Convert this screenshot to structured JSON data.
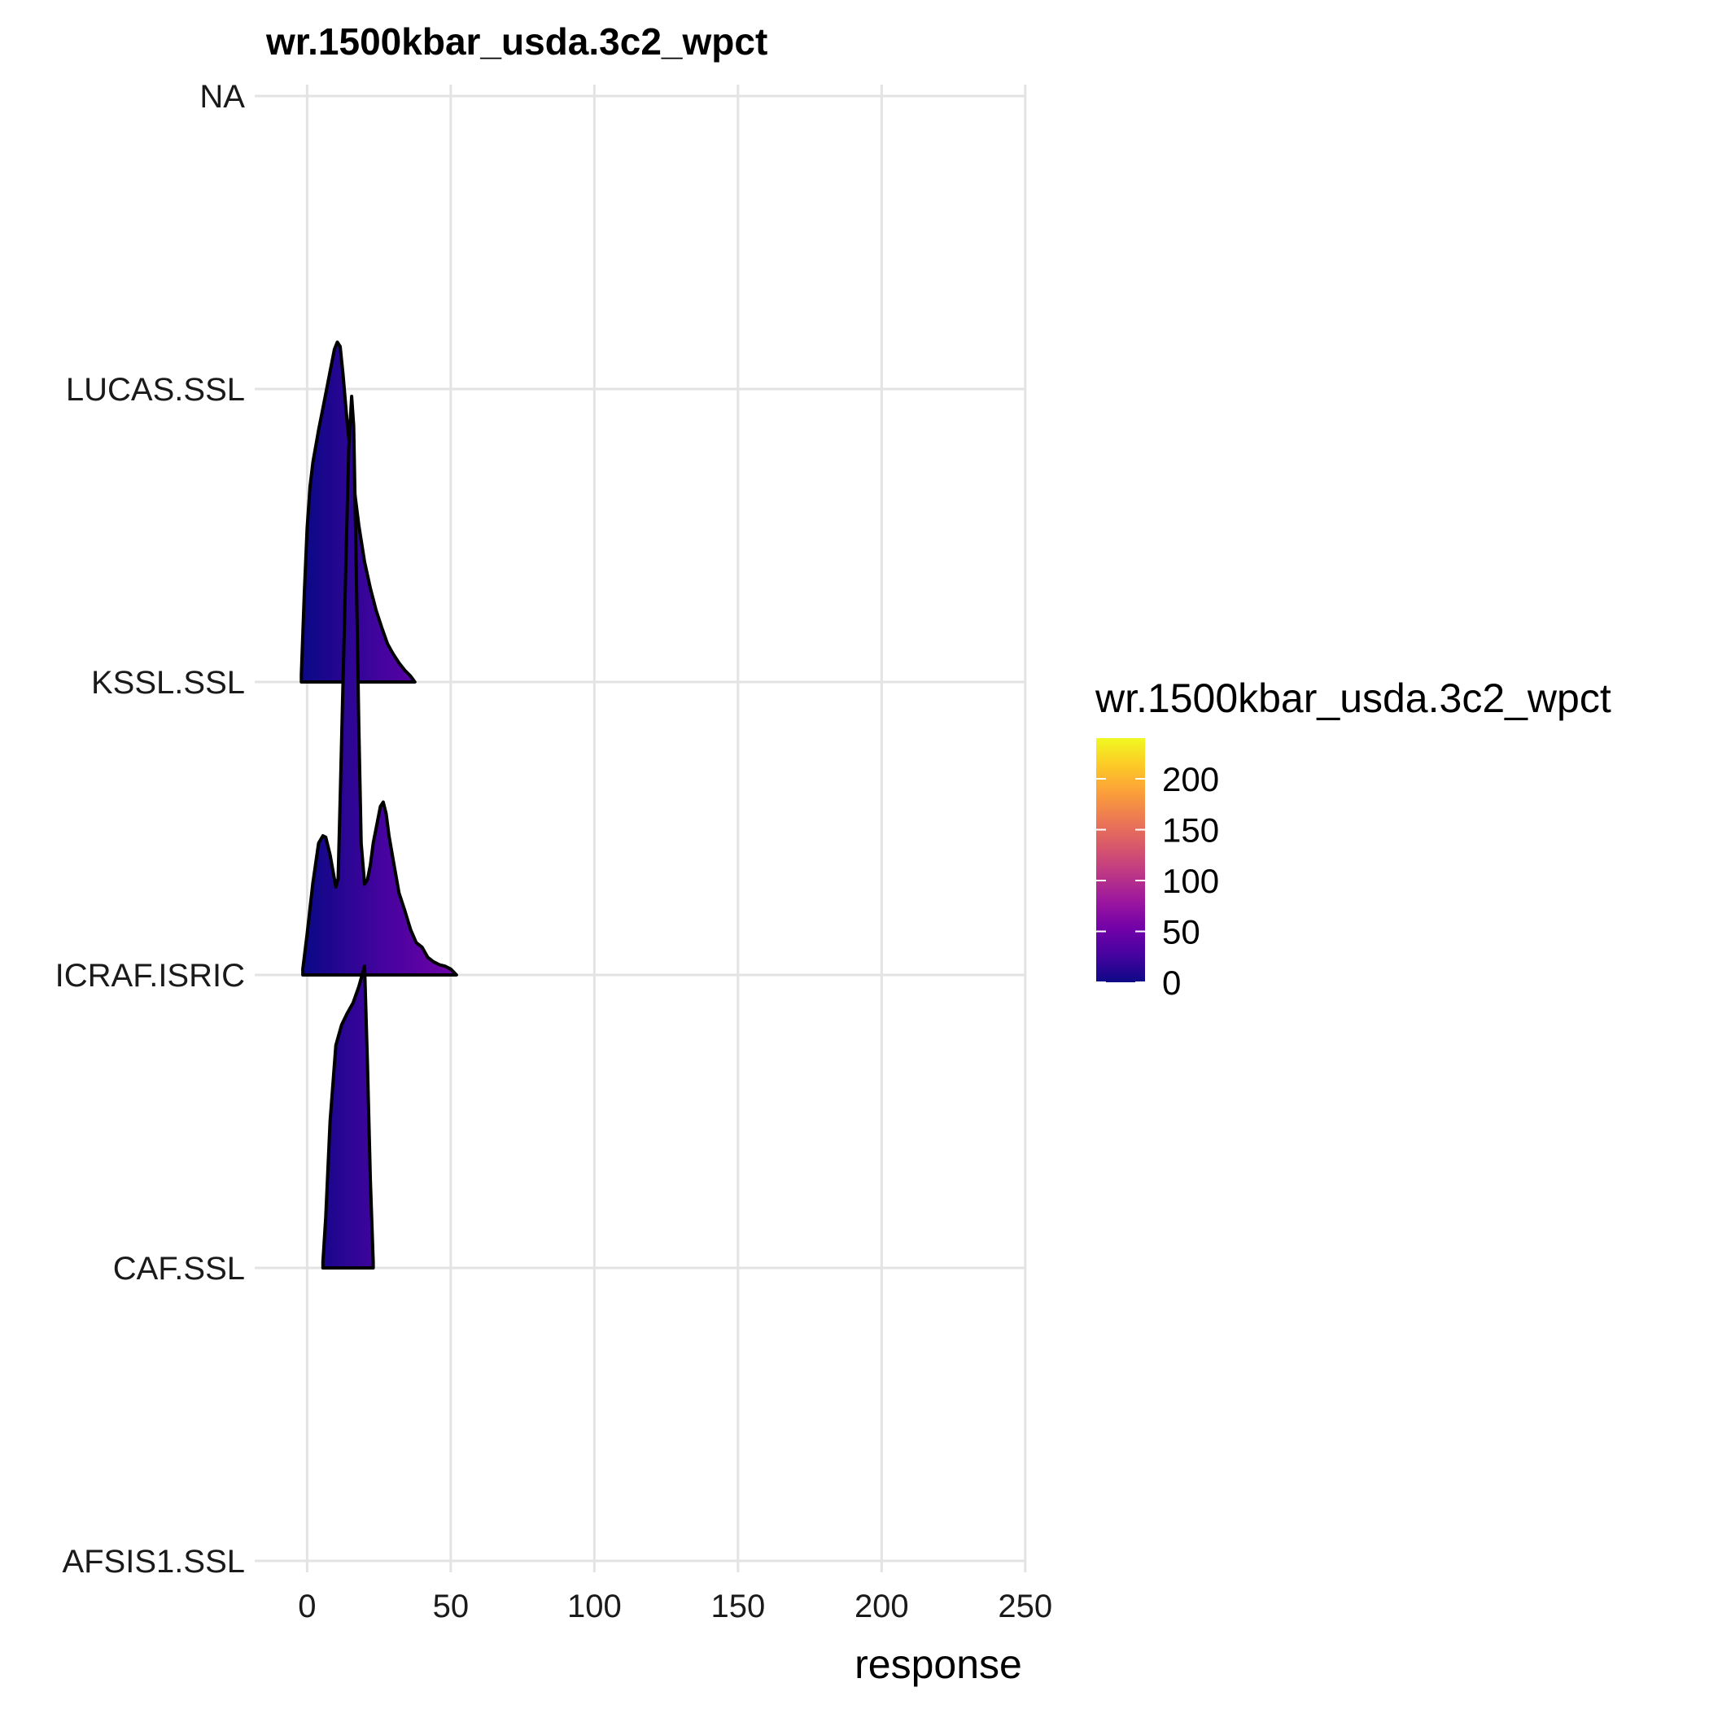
{
  "chart_data": {
    "type": "ridgeline",
    "title": "wr.1500kbar_usda.3c2_wpct",
    "xlabel": "response",
    "ylabel": "",
    "xlim": [
      -18,
      252
    ],
    "x_ticks": [
      0,
      50,
      100,
      150,
      200,
      250
    ],
    "categories": [
      "AFSIS1.SSL",
      "CAF.SSL",
      "ICRAF.ISRIC",
      "KSSL.SSL",
      "LUCAS.SSL",
      "NA"
    ],
    "grid": true,
    "legend": {
      "title": "wr.1500kbar_usda.3c2_wpct",
      "position": "right",
      "type": "colorbar",
      "palette": "plasma",
      "range": [
        0,
        240
      ],
      "ticks": [
        0,
        50,
        100,
        150,
        200
      ],
      "colors": [
        "#0d0887",
        "#46039f",
        "#7201a8",
        "#9c179e",
        "#bd3786",
        "#d8576b",
        "#ed7953",
        "#fb9f3a",
        "#fdca26",
        "#f0f921"
      ]
    },
    "series": [
      {
        "category": "CAF.SSL",
        "points": [
          [
            5.5,
            0.04
          ],
          [
            6.5,
            0.35
          ],
          [
            8,
            1.0
          ],
          [
            10,
            1.52
          ],
          [
            12,
            1.66
          ],
          [
            14,
            1.74
          ],
          [
            16,
            1.81
          ],
          [
            18,
            1.92
          ],
          [
            20,
            2.06
          ],
          [
            21,
            1.4
          ],
          [
            22,
            0.6
          ],
          [
            23,
            0.04
          ]
        ]
      },
      {
        "category": "ICRAF.ISRIC",
        "points": [
          [
            -1.5,
            0.04
          ],
          [
            0,
            0.28
          ],
          [
            2,
            0.63
          ],
          [
            4,
            0.9
          ],
          [
            5.5,
            0.95
          ],
          [
            6.5,
            0.94
          ],
          [
            8,
            0.82
          ],
          [
            10,
            0.6
          ],
          [
            10.8,
            0.66
          ],
          [
            11.5,
            1.2
          ],
          [
            12.5,
            2.0
          ],
          [
            13.5,
            2.8
          ],
          [
            14.5,
            3.6
          ],
          [
            15.5,
            3.95
          ],
          [
            16.2,
            3.75
          ],
          [
            17,
            2.9
          ],
          [
            18,
            1.7
          ],
          [
            18.8,
            0.9
          ],
          [
            20,
            0.62
          ],
          [
            21,
            0.65
          ],
          [
            22,
            0.75
          ],
          [
            23,
            0.9
          ],
          [
            24.5,
            1.05
          ],
          [
            25.5,
            1.15
          ],
          [
            26.5,
            1.18
          ],
          [
            27.5,
            1.1
          ],
          [
            28.5,
            0.95
          ],
          [
            30,
            0.78
          ],
          [
            32,
            0.56
          ],
          [
            34,
            0.44
          ],
          [
            36,
            0.31
          ],
          [
            38,
            0.22
          ],
          [
            40,
            0.19
          ],
          [
            42,
            0.12
          ],
          [
            44,
            0.09
          ],
          [
            46,
            0.07
          ],
          [
            48,
            0.06
          ],
          [
            50,
            0.04
          ],
          [
            52,
            0.0
          ]
        ]
      },
      {
        "category": "KSSL.SSL",
        "points": [
          [
            -2,
            0.05
          ],
          [
            -1,
            0.6
          ],
          [
            0,
            1.05
          ],
          [
            1,
            1.33
          ],
          [
            2,
            1.5
          ],
          [
            4,
            1.72
          ],
          [
            6,
            1.92
          ],
          [
            8,
            2.12
          ],
          [
            9.5,
            2.27
          ],
          [
            10.5,
            2.32
          ],
          [
            11.5,
            2.29
          ],
          [
            12.5,
            2.1
          ],
          [
            14,
            1.76
          ],
          [
            16,
            1.38
          ],
          [
            18,
            1.07
          ],
          [
            20,
            0.82
          ],
          [
            22,
            0.64
          ],
          [
            24,
            0.49
          ],
          [
            26,
            0.37
          ],
          [
            28,
            0.26
          ],
          [
            30,
            0.19
          ],
          [
            32,
            0.13
          ],
          [
            34,
            0.08
          ],
          [
            36,
            0.04
          ],
          [
            37.5,
            0.0
          ]
        ]
      }
    ]
  }
}
